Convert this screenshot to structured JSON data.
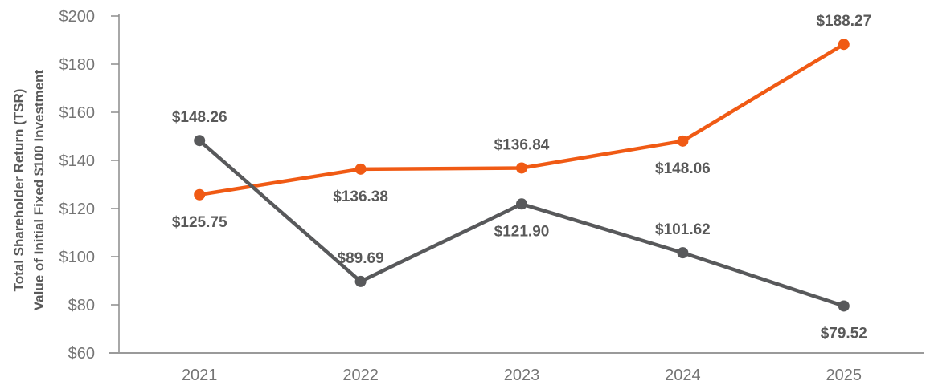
{
  "chart_data": {
    "type": "line",
    "title": "",
    "xlabel": "",
    "ylabel_line1": "Total Shareholder Return (TSR)",
    "ylabel_line2": "Value of Initial Fixed $100 Investment",
    "categories": [
      "2021",
      "2022",
      "2023",
      "2024",
      "2025"
    ],
    "series": [
      {
        "name": "orange",
        "color": "#F05A14",
        "values": [
          125.75,
          136.38,
          136.84,
          148.06,
          188.27
        ],
        "point_labels": [
          "$125.75",
          "$136.38",
          "$136.84",
          "$148.06",
          "$188.27"
        ],
        "label_positions": [
          "below",
          "below",
          "above",
          "below",
          "above"
        ]
      },
      {
        "name": "dark-gray",
        "color": "#58595B",
        "values": [
          148.26,
          89.69,
          121.9,
          101.62,
          79.52
        ],
        "point_labels": [
          "$148.26",
          "$89.69",
          "$121.90",
          "$101.62",
          "$79.52"
        ],
        "label_positions": [
          "above",
          "above",
          "below",
          "above",
          "below"
        ]
      }
    ],
    "ylim": [
      60,
      200
    ],
    "ytick_step": 20,
    "ytick_labels": [
      "$60",
      "$80",
      "$100",
      "$120",
      "$140",
      "$160",
      "$180",
      "$200"
    ],
    "grid": false,
    "legend": "none",
    "data_label_color": "#595959",
    "tick_label_color": "#757575",
    "axis_color": "#8C8C8C",
    "x_axis_color": "#9A9A9A"
  }
}
